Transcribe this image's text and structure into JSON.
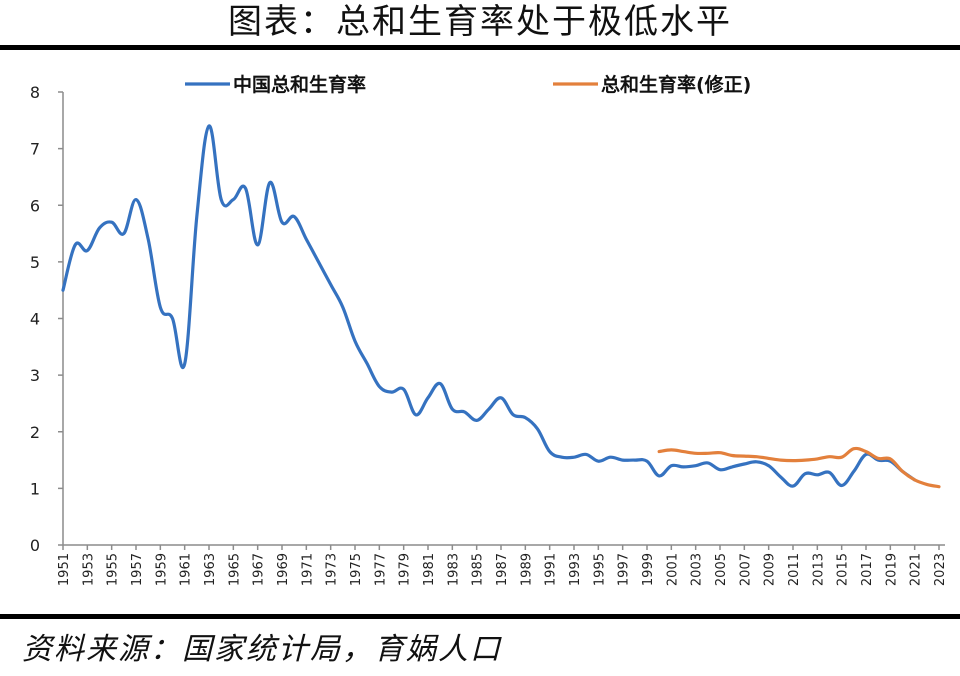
{
  "header": {
    "title": "图表：总和生育率处于极低水平"
  },
  "footer": {
    "source": "资料来源：国家统计局，育娲人口"
  },
  "colors": {
    "china_tfr": "#3572c0",
    "tfr_revised": "#e3803c",
    "axis": "#8c8c8c"
  },
  "chart_data": {
    "type": "line",
    "title": "图表：总和生育率处于极低水平",
    "xlabel": "",
    "ylabel": "",
    "ylim": [
      0,
      8
    ],
    "yticks": [
      0,
      1,
      2,
      3,
      4,
      5,
      6,
      7,
      8
    ],
    "xtick_labels": [
      "1951",
      "1953",
      "1955",
      "1957",
      "1959",
      "1961",
      "1963",
      "1965",
      "1967",
      "1969",
      "1971",
      "1973",
      "1975",
      "1977",
      "1979",
      "1981",
      "1983",
      "1985",
      "1987",
      "1989",
      "1991",
      "1993",
      "1995",
      "1997",
      "1999",
      "2001",
      "2003",
      "2005",
      "2007",
      "2009",
      "2011",
      "2013",
      "2015",
      "2017",
      "2019",
      "2021",
      "2023"
    ],
    "grid": false,
    "legend_position": "top",
    "series": [
      {
        "name": "中国总和生育率",
        "color": "#3572c0",
        "x": [
          1951,
          1952,
          1953,
          1954,
          1955,
          1956,
          1957,
          1958,
          1959,
          1960,
          1961,
          1962,
          1963,
          1964,
          1965,
          1966,
          1967,
          1968,
          1969,
          1970,
          1971,
          1972,
          1973,
          1974,
          1975,
          1976,
          1977,
          1978,
          1979,
          1980,
          1981,
          1982,
          1983,
          1984,
          1985,
          1986,
          1987,
          1988,
          1989,
          1990,
          1991,
          1992,
          1993,
          1994,
          1995,
          1996,
          1997,
          1998,
          1999,
          2000,
          2001,
          2002,
          2003,
          2004,
          2005,
          2006,
          2007,
          2008,
          2009,
          2010,
          2011,
          2012,
          2013,
          2014,
          2015,
          2016,
          2017,
          2018,
          2019,
          2020,
          2021
        ],
        "values": [
          4.5,
          5.3,
          5.2,
          5.6,
          5.7,
          5.5,
          6.1,
          5.4,
          4.2,
          4.0,
          3.2,
          5.8,
          7.4,
          6.1,
          6.1,
          6.3,
          5.3,
          6.4,
          5.7,
          5.8,
          5.4,
          5.0,
          4.6,
          4.2,
          3.6,
          3.2,
          2.8,
          2.7,
          2.75,
          2.3,
          2.6,
          2.85,
          2.4,
          2.35,
          2.2,
          2.4,
          2.6,
          2.3,
          2.25,
          2.05,
          1.65,
          1.55,
          1.55,
          1.6,
          1.48,
          1.55,
          1.5,
          1.5,
          1.48,
          1.22,
          1.4,
          1.38,
          1.4,
          1.45,
          1.33,
          1.38,
          1.43,
          1.47,
          1.4,
          1.2,
          1.04,
          1.26,
          1.24,
          1.28,
          1.05,
          1.3,
          1.6,
          1.5,
          1.48,
          1.3,
          1.15
        ]
      },
      {
        "name": "总和生育率(修正)",
        "color": "#e3803c",
        "x": [
          2000,
          2001,
          2002,
          2003,
          2004,
          2005,
          2006,
          2007,
          2008,
          2009,
          2010,
          2011,
          2012,
          2013,
          2014,
          2015,
          2016,
          2017,
          2018,
          2019,
          2020,
          2021,
          2022,
          2023
        ],
        "values": [
          1.65,
          1.68,
          1.65,
          1.62,
          1.62,
          1.63,
          1.58,
          1.57,
          1.56,
          1.53,
          1.5,
          1.49,
          1.5,
          1.52,
          1.56,
          1.55,
          1.7,
          1.65,
          1.53,
          1.52,
          1.3,
          1.15,
          1.07,
          1.03
        ]
      }
    ]
  }
}
